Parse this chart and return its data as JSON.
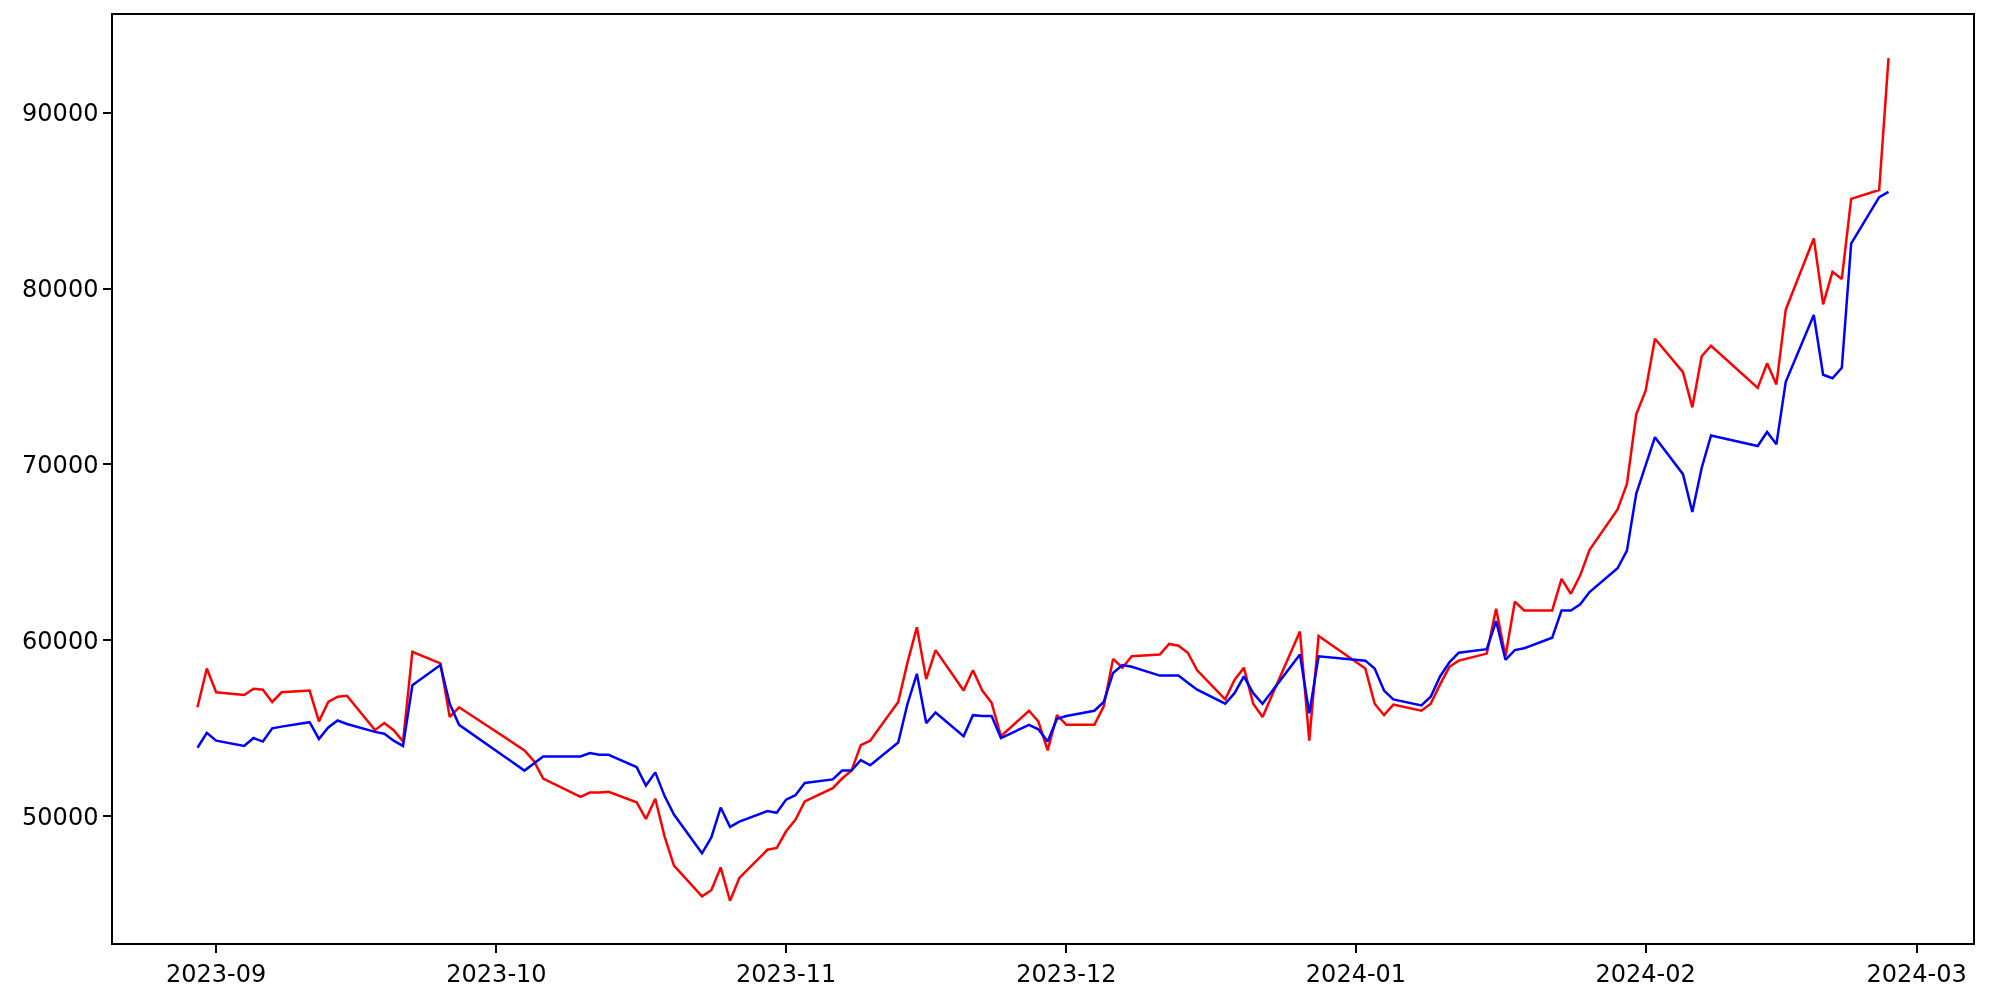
{
  "chart_data": {
    "type": "line",
    "x": [
      "2023-08-30",
      "2023-08-31",
      "2023-09-01",
      "2023-09-04",
      "2023-09-05",
      "2023-09-06",
      "2023-09-07",
      "2023-09-08",
      "2023-09-11",
      "2023-09-12",
      "2023-09-13",
      "2023-09-14",
      "2023-09-15",
      "2023-09-18",
      "2023-09-19",
      "2023-09-20",
      "2023-09-21",
      "2023-09-22",
      "2023-09-25",
      "2023-09-26",
      "2023-09-27",
      "2023-10-04",
      "2023-10-05",
      "2023-10-06",
      "2023-10-10",
      "2023-10-11",
      "2023-10-12",
      "2023-10-13",
      "2023-10-16",
      "2023-10-17",
      "2023-10-18",
      "2023-10-19",
      "2023-10-20",
      "2023-10-23",
      "2023-10-24",
      "2023-10-25",
      "2023-10-26",
      "2023-10-27",
      "2023-10-30",
      "2023-10-31",
      "2023-11-01",
      "2023-11-02",
      "2023-11-03",
      "2023-11-06",
      "2023-11-07",
      "2023-11-08",
      "2023-11-09",
      "2023-11-10",
      "2023-11-13",
      "2023-11-14",
      "2023-11-15",
      "2023-11-16",
      "2023-11-17",
      "2023-11-20",
      "2023-11-21",
      "2023-11-22",
      "2023-11-23",
      "2023-11-24",
      "2023-11-27",
      "2023-11-28",
      "2023-11-29",
      "2023-11-30",
      "2023-12-01",
      "2023-12-04",
      "2023-12-05",
      "2023-12-06",
      "2023-12-07",
      "2023-12-08",
      "2023-12-11",
      "2023-12-12",
      "2023-12-13",
      "2023-12-14",
      "2023-12-15",
      "2023-12-18",
      "2023-12-19",
      "2023-12-20",
      "2023-12-21",
      "2023-12-22",
      "2023-12-26",
      "2023-12-27",
      "2023-12-28",
      "2024-01-02",
      "2024-01-03",
      "2024-01-04",
      "2024-01-05",
      "2024-01-08",
      "2024-01-09",
      "2024-01-10",
      "2024-01-11",
      "2024-01-12",
      "2024-01-15",
      "2024-01-16",
      "2024-01-17",
      "2024-01-18",
      "2024-01-19",
      "2024-01-22",
      "2024-01-23",
      "2024-01-24",
      "2024-01-25",
      "2024-01-26",
      "2024-01-29",
      "2024-01-30",
      "2024-01-31",
      "2024-02-01",
      "2024-02-02",
      "2024-02-05",
      "2024-02-06",
      "2024-02-07",
      "2024-02-08",
      "2024-02-13",
      "2024-02-14",
      "2024-02-15",
      "2024-02-16",
      "2024-02-19",
      "2024-02-20",
      "2024-02-21",
      "2024-02-22",
      "2024-02-23",
      "2024-02-26",
      "2024-02-27"
    ],
    "series": [
      {
        "color": "#ff0000",
        "values": [
          56200,
          58400,
          57050,
          56900,
          57250,
          57200,
          56500,
          57050,
          57150,
          55400,
          56500,
          56800,
          56850,
          54900,
          55300,
          54900,
          54250,
          59350,
          58700,
          55650,
          56200,
          53750,
          53150,
          52150,
          51100,
          51350,
          51350,
          51400,
          50800,
          49850,
          51000,
          48850,
          47200,
          45450,
          45800,
          47100,
          45200,
          46500,
          48100,
          48200,
          49150,
          49800,
          50850,
          51600,
          52150,
          52600,
          54050,
          54300,
          56500,
          58750,
          60750,
          57800,
          59450,
          57150,
          58300,
          57150,
          56450,
          54550,
          56000,
          55400,
          53750,
          55750,
          55200,
          55200,
          56250,
          58950,
          58450,
          59100,
          59200,
          59800,
          59700,
          59300,
          58300,
          56650,
          57750,
          58450,
          56400,
          55650,
          60500,
          54300,
          60250,
          58400,
          56400,
          55750,
          56350,
          56000,
          56400,
          57500,
          58500,
          58850,
          59250,
          61800,
          59100,
          62200,
          61700,
          61700,
          63500,
          62650,
          63700,
          65150,
          67450,
          68900,
          72850,
          74200,
          77150,
          75250,
          73250,
          76150,
          76750,
          74350,
          75750,
          74550,
          78800,
          82850,
          79100,
          80950,
          80550,
          85100,
          85600,
          93100
        ]
      },
      {
        "color": "#0000ff",
        "values": [
          53900,
          54750,
          54300,
          54000,
          54450,
          54250,
          55000,
          55100,
          55350,
          54400,
          55050,
          55450,
          55250,
          54800,
          54700,
          54300,
          54000,
          57450,
          58600,
          56400,
          55200,
          52600,
          53000,
          53400,
          53400,
          53600,
          53500,
          53500,
          52800,
          51750,
          52500,
          51150,
          50100,
          47900,
          48800,
          50500,
          49400,
          49700,
          50300,
          50200,
          50950,
          51200,
          51900,
          52100,
          52600,
          52600,
          53200,
          52900,
          54200,
          56400,
          58100,
          55300,
          55900,
          54550,
          55750,
          55700,
          55700,
          54450,
          55200,
          54950,
          54250,
          55550,
          55700,
          56000,
          56500,
          58150,
          58600,
          58500,
          58000,
          58000,
          58000,
          57600,
          57200,
          56400,
          57000,
          57950,
          57000,
          56400,
          59200,
          55850,
          59100,
          58850,
          58400,
          57150,
          56650,
          56300,
          56800,
          57950,
          58750,
          59300,
          59500,
          61100,
          58900,
          59450,
          59550,
          60150,
          61700,
          61700,
          62050,
          62750,
          64100,
          65100,
          68350,
          69950,
          71550,
          69450,
          67300,
          69800,
          71650,
          71050,
          71850,
          71150,
          74700,
          78500,
          75100,
          74900,
          75500,
          82550,
          85200,
          85500
        ]
      }
    ],
    "xlim": [
      "2023-08-20T23:00",
      "2024-03-07T01:00"
    ],
    "xticks": [
      {
        "value": "2023-09-01",
        "label": "2023-09"
      },
      {
        "value": "2023-10-01",
        "label": "2023-10"
      },
      {
        "value": "2023-11-01",
        "label": "2023-11"
      },
      {
        "value": "2023-12-01",
        "label": "2023-12"
      },
      {
        "value": "2024-01-01",
        "label": "2024-01"
      },
      {
        "value": "2024-02-01",
        "label": "2024-02"
      },
      {
        "value": "2024-03-01",
        "label": "2024-03"
      }
    ],
    "ylim": [
      42800,
      95550
    ],
    "yticks": [
      50000,
      60000,
      70000,
      80000,
      90000
    ],
    "marker": "none",
    "line_style": "solid"
  }
}
